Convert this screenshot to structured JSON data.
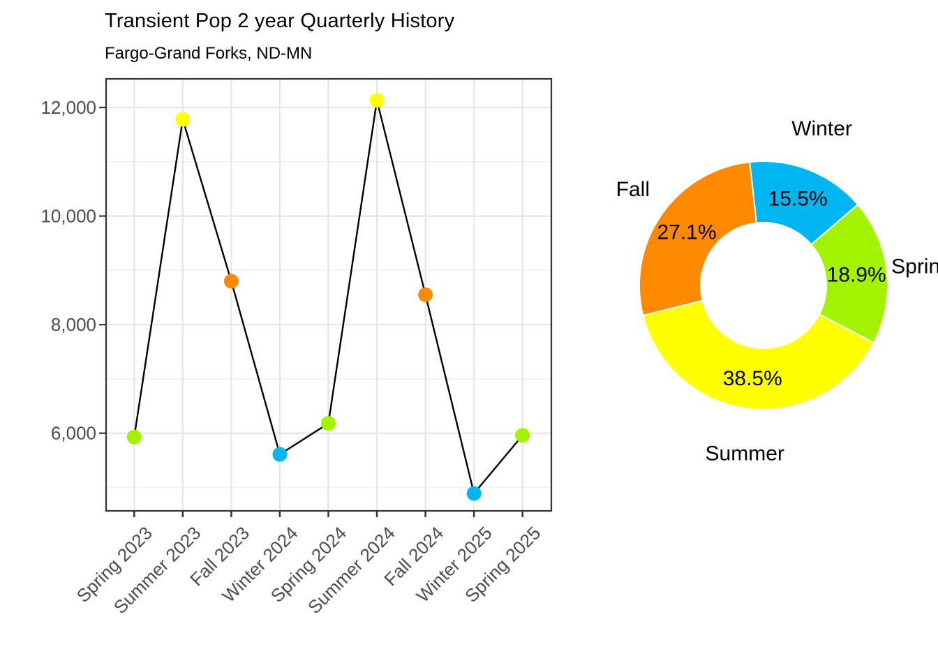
{
  "chart_data": [
    {
      "type": "line",
      "title": "Transient Pop 2 year Quarterly History",
      "subtitle": "Fargo-Grand Forks, ND-MN",
      "categories": [
        "Spring 2023",
        "Summer 2023",
        "Fall 2023",
        "Winter 2024",
        "Spring 2024",
        "Summer 2024",
        "Fall 2024",
        "Winter 2025",
        "Spring 2025"
      ],
      "values": [
        5930,
        11780,
        8800,
        5610,
        6180,
        12130,
        8550,
        4890,
        5960
      ],
      "point_seasons": [
        "Spring",
        "Summer",
        "Fall",
        "Winter",
        "Spring",
        "Summer",
        "Fall",
        "Winter",
        "Spring"
      ],
      "season_colors": {
        "Spring": "#A3F200",
        "Summer": "#FFFF00",
        "Fall": "#FF8A00",
        "Winter": "#00B6F0"
      },
      "xlabel": "",
      "ylabel": "",
      "ylim": [
        4570,
        12530
      ],
      "yticks": [
        {
          "value": 6000,
          "label": "6,000"
        },
        {
          "value": 8000,
          "label": "8,000"
        },
        {
          "value": 10000,
          "label": "10,000"
        },
        {
          "value": 12000,
          "label": "12,000"
        }
      ],
      "yminor": [
        5000,
        7000,
        9000,
        11000
      ],
      "grid": "on",
      "line_color": "#000000",
      "axis_text_color": "#4D4D4D",
      "panel_border_color": "#333333",
      "grid_major_color": "#E4E4E4",
      "grid_minor_color": "#F0F0F0"
    },
    {
      "type": "pie",
      "donut": true,
      "direction": "clockwise",
      "start_angle_deg": -6.4,
      "legend_position": "none",
      "label_color": "#000000",
      "slices": [
        {
          "label": "Winter",
          "pct": 15.5,
          "pct_label": "15.5%",
          "color": "#00B6F0"
        },
        {
          "label": "Spring",
          "pct": 18.9,
          "pct_label": "18.9%",
          "color": "#A3F200"
        },
        {
          "label": "Summer",
          "pct": 38.5,
          "pct_label": "38.5%",
          "color": "#FFFF00"
        },
        {
          "label": "Fall",
          "pct": 27.1,
          "pct_label": "27.1%",
          "color": "#FF8A00"
        }
      ]
    }
  ]
}
